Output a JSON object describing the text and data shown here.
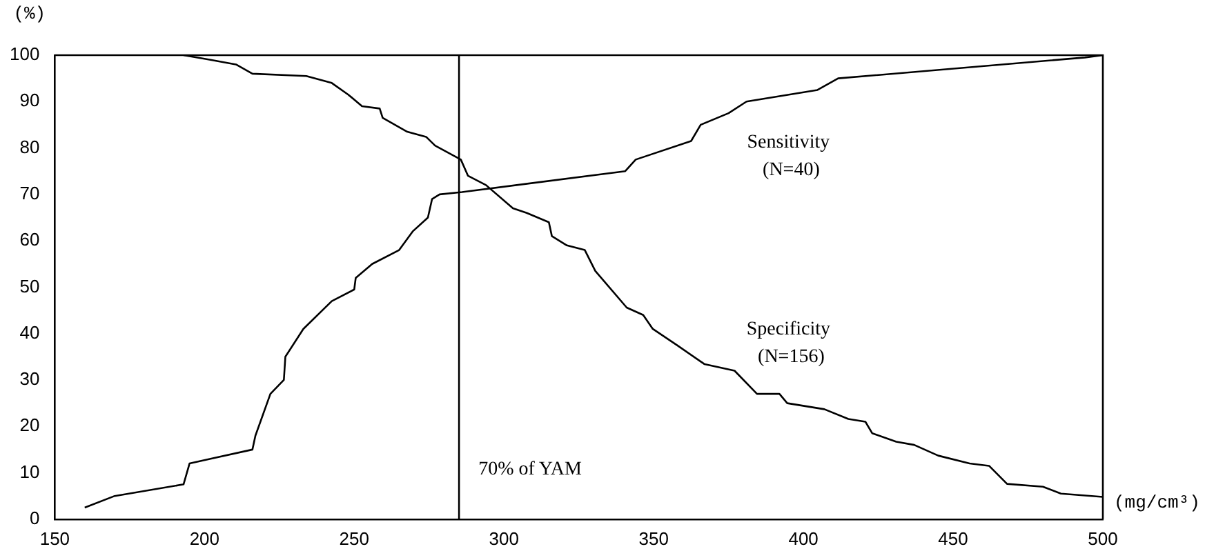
{
  "chart_data": {
    "type": "line",
    "ylabel": "(%)",
    "xlabel": "(mg/cm³)",
    "xlim": [
      150,
      500
    ],
    "xticks": [
      150,
      200,
      250,
      300,
      350,
      400,
      450,
      500
    ],
    "ylim": [
      0,
      100
    ],
    "yticks": [
      0,
      10,
      20,
      30,
      40,
      50,
      60,
      70,
      80,
      90,
      100
    ],
    "grid": false,
    "legend": false,
    "marker": "none",
    "line_style": "solid",
    "ref_lines": [
      {
        "axis": "x",
        "value": 285,
        "label": "70% of YAM",
        "color": "#000000"
      }
    ],
    "series": [
      {
        "name": "Sensitivity (N=40)",
        "color": "#000000",
        "x": [
          160,
          170,
          193,
          195,
          202,
          216,
          217,
          222,
          226.5,
          227,
          233,
          242.5,
          250,
          250.5,
          256,
          265,
          269.5,
          274.6,
          276,
          278.5,
          286,
          340.5,
          344,
          362.5,
          365.7,
          375,
          381,
          404.7,
          411.6,
          494,
          500
        ],
        "values": [
          2.5,
          5,
          7.5,
          12,
          13,
          15,
          18,
          27,
          30,
          35,
          41,
          47,
          49.5,
          52,
          55,
          58,
          62,
          65,
          69,
          70,
          70.5,
          75,
          77.5,
          81.5,
          85,
          87.5,
          90,
          92.5,
          95,
          99.5,
          100
        ]
      },
      {
        "name": "Specificity (N=156)",
        "color": "#000000",
        "x": [
          193,
          202,
          210.5,
          216,
          234,
          242.5,
          248,
          252.6,
          258.5,
          259.5,
          267.7,
          274,
          277,
          285.6,
          288,
          294,
          303,
          307.6,
          315,
          316,
          321,
          327,
          330.5,
          341,
          346.5,
          349.7,
          358,
          367,
          377,
          384.5,
          392,
          394.6,
          407,
          415,
          420.7,
          423,
          431,
          437,
          445,
          455.5,
          462,
          468,
          480,
          486,
          500
        ],
        "values": [
          100,
          99,
          98,
          96,
          95.5,
          94,
          91.5,
          89,
          88.5,
          86.5,
          83.5,
          82.4,
          80.5,
          77.5,
          74,
          72,
          67,
          66,
          64,
          61,
          59,
          58,
          53.5,
          45.6,
          44,
          41,
          37.4,
          33.4,
          32,
          27,
          27,
          25,
          23.7,
          21.6,
          21,
          18.5,
          16.7,
          16,
          13.7,
          12,
          11.5,
          7.6,
          7,
          5.5,
          4.8
        ]
      }
    ]
  }
}
